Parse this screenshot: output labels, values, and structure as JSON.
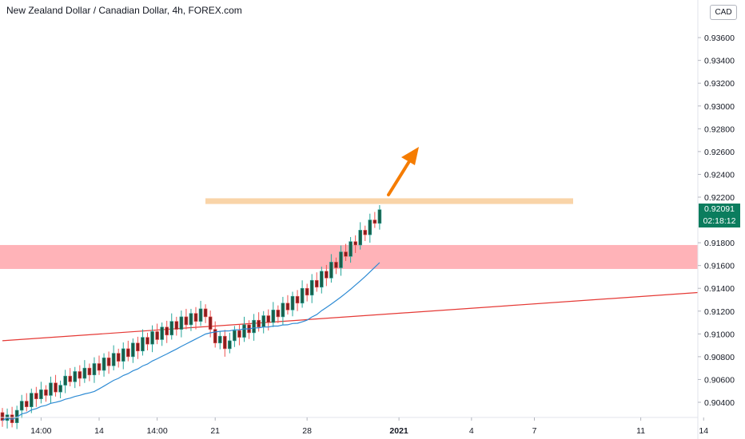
{
  "header": {
    "title": "New Zealand Dollar / Canadian Dollar, 4h, FOREX.com",
    "currency": "CAD"
  },
  "badges": {
    "price": "0.92091",
    "countdown": "02:18:12"
  },
  "colors": {
    "up": "#26a69a",
    "down": "#ef5350",
    "body_up": "#1a5e4a",
    "body_down": "#8b1e1e",
    "ma": "#2e8bd4",
    "trendline": "#e53935",
    "resistance_zone": "#f9d4a8",
    "support_zone": "#ffb3b8",
    "arrow": "#f57c00",
    "badge": "#0b7d5e"
  },
  "chart_data": {
    "type": "candlestick",
    "title": "New Zealand Dollar / Canadian Dollar, 4h, FOREX.com",
    "y_ticks": [
      "0.93600",
      "0.93400",
      "0.93200",
      "0.93000",
      "0.92800",
      "0.92600",
      "0.92400",
      "0.92200",
      "0.91800",
      "0.91600",
      "0.91400",
      "0.91200",
      "0.91000",
      "0.90800",
      "0.90600",
      "0.90400"
    ],
    "y_tick_values": [
      0.936,
      0.934,
      0.932,
      0.93,
      0.928,
      0.926,
      0.924,
      0.922,
      0.918,
      0.916,
      0.914,
      0.912,
      0.91,
      0.908,
      0.906,
      0.904
    ],
    "x_ticks": [
      "14:00",
      "14",
      "14:00",
      "21",
      "28",
      "2021",
      "4",
      "7",
      "11",
      "14"
    ],
    "x_tick_index": [
      8,
      20,
      32,
      44,
      63,
      82,
      97,
      110,
      132,
      145
    ],
    "ylim": [
      0.9024,
      0.9378
    ],
    "last_price": 0.92091,
    "start_price": 0.9031,
    "closes": [
      0.9024,
      0.9029,
      0.9022,
      0.9033,
      0.9041,
      0.9036,
      0.9048,
      0.9043,
      0.9051,
      0.9046,
      0.9057,
      0.9049,
      0.9055,
      0.9063,
      0.9058,
      0.9067,
      0.9061,
      0.907,
      0.9064,
      0.9074,
      0.9068,
      0.9079,
      0.9072,
      0.9083,
      0.9076,
      0.9087,
      0.908,
      0.9092,
      0.9085,
      0.9097,
      0.9091,
      0.9102,
      0.9095,
      0.9106,
      0.9099,
      0.9111,
      0.9104,
      0.9115,
      0.9108,
      0.9118,
      0.9111,
      0.9122,
      0.9115,
      0.9104,
      0.9092,
      0.9098,
      0.9087,
      0.9094,
      0.9103,
      0.9097,
      0.9108,
      0.9101,
      0.9112,
      0.9106,
      0.9116,
      0.911,
      0.9121,
      0.9115,
      0.9127,
      0.9121,
      0.9133,
      0.9127,
      0.914,
      0.9134,
      0.9147,
      0.9141,
      0.9155,
      0.9149,
      0.9163,
      0.9158,
      0.9172,
      0.9168,
      0.9181,
      0.9178,
      0.9191,
      0.9187,
      0.92,
      0.9197,
      0.9209
    ],
    "moving_average": "20-period",
    "resistance_zone": [
      0.9214,
      0.9219
    ],
    "support_zone": [
      0.9157,
      0.9178
    ],
    "trendline": [
      [
        0,
        0.9094
      ],
      [
        136,
        0.9134
      ]
    ]
  }
}
